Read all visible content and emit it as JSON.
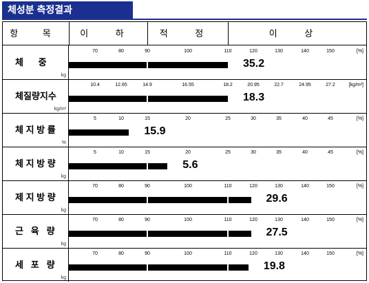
{
  "title": "체성분 측정결과",
  "header": {
    "item": "항 목",
    "below": "이 하",
    "normal": "적 정",
    "above": "이 상"
  },
  "rows": [
    {
      "name": "체      중",
      "unit": "kg",
      "ticks": [
        "70",
        "80",
        "90",
        "100",
        "110",
        "120",
        "130",
        "140",
        "150"
      ],
      "scale_unit": "[%]",
      "value": "35.2",
      "level_pct": 110
    },
    {
      "name": "체질량지수",
      "unit": "kg/m²",
      "ticks": [
        "10.4",
        "12.65",
        "14.9",
        "16.55",
        "18.2",
        "20.95",
        "22.7",
        "24.95",
        "27.2"
      ],
      "scale_unit": "[kg/m²]",
      "value": "18.3",
      "level_pct": 110
    },
    {
      "name": "체 지 방 률",
      "unit": "%",
      "ticks": [
        "5",
        "10",
        "15",
        "20",
        "25",
        "30",
        "35",
        "40",
        "45"
      ],
      "scale_unit": "[%]",
      "value": "15.9",
      "level_pct": 83
    },
    {
      "name": "체 지 방 량",
      "unit": "kg",
      "ticks": [
        "5",
        "10",
        "15",
        "20",
        "25",
        "30",
        "35",
        "40",
        "45"
      ],
      "scale_unit": "[%]",
      "value": "5.6",
      "level_pct": 95
    },
    {
      "name": "제 지 방 량",
      "unit": "kg",
      "ticks": [
        "70",
        "80",
        "90",
        "100",
        "110",
        "120",
        "130",
        "140",
        "150"
      ],
      "scale_unit": "[%]",
      "value": "29.6",
      "level_pct": 119
    },
    {
      "name": "근   육   량",
      "unit": "kg",
      "ticks": [
        "70",
        "80",
        "90",
        "100",
        "110",
        "120",
        "130",
        "140",
        "150"
      ],
      "scale_unit": "[%]",
      "value": "27.5",
      "level_pct": 119
    },
    {
      "name": "세   포   량",
      "unit": "kg",
      "ticks": [
        "70",
        "80",
        "90",
        "100",
        "110",
        "120",
        "130",
        "140",
        "150"
      ],
      "scale_unit": "[%]",
      "value": "19.8",
      "level_pct": 118
    }
  ]
}
